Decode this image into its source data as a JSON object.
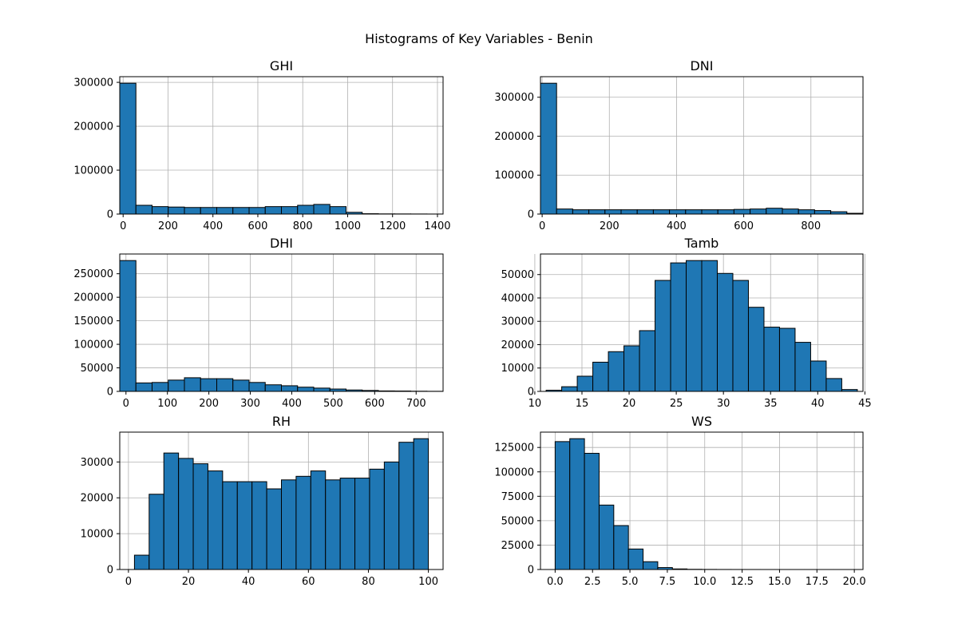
{
  "figure": {
    "suptitle": "Histograms of Key Variables - Benin"
  },
  "colors": {
    "bar_fill": "#1f77b4",
    "bar_edge": "#000000",
    "grid": "#b0b0b0"
  },
  "chart_data": [
    {
      "type": "bar",
      "title": "GHI",
      "xlabel": "",
      "ylabel": "",
      "grid": true,
      "bin_edges": [
        -15,
        57,
        129,
        201,
        273,
        345,
        417,
        489,
        561,
        633,
        705,
        777,
        849,
        921,
        993,
        1065,
        1137,
        1209,
        1281,
        1353,
        1425
      ],
      "values": [
        298000,
        20000,
        17000,
        16000,
        15000,
        15000,
        15000,
        15000,
        15000,
        17000,
        17000,
        20000,
        22000,
        17000,
        4000,
        800,
        400,
        300,
        200,
        100
      ],
      "xlim": [
        -15,
        1425
      ],
      "ylim": [
        0,
        312900
      ],
      "xticks": [
        0,
        200,
        400,
        600,
        800,
        1000,
        1200,
        1400
      ],
      "yticks": [
        0,
        100000,
        200000,
        300000
      ]
    },
    {
      "type": "bar",
      "title": "DNI",
      "xlabel": "",
      "ylabel": "",
      "grid": true,
      "bin_edges": [
        -5,
        43,
        91,
        139,
        187,
        235,
        283,
        331,
        379,
        427,
        475,
        523,
        571,
        619,
        667,
        715,
        763,
        811,
        859,
        907,
        955
      ],
      "values": [
        336000,
        13000,
        11000,
        11000,
        11000,
        11000,
        11000,
        11000,
        11000,
        11000,
        11000,
        11000,
        12000,
        13000,
        15000,
        13000,
        11000,
        9000,
        6000,
        2000
      ],
      "xlim": [
        -5,
        955
      ],
      "ylim": [
        0,
        352800
      ],
      "xticks": [
        0,
        200,
        400,
        600,
        800
      ],
      "yticks": [
        0,
        100000,
        200000,
        300000
      ]
    },
    {
      "type": "bar",
      "title": "DHI",
      "xlabel": "",
      "ylabel": "",
      "grid": true,
      "bin_edges": [
        -15,
        24,
        63,
        102,
        141,
        180,
        219,
        258,
        297,
        336,
        375,
        414,
        453,
        492,
        531,
        570,
        609,
        648,
        687,
        726,
        765
      ],
      "values": [
        278000,
        18000,
        19000,
        24000,
        29000,
        27000,
        27000,
        24000,
        19000,
        14000,
        12000,
        9000,
        7000,
        5000,
        3000,
        2000,
        1000,
        800,
        400,
        200
      ],
      "xlim": [
        -15,
        765
      ],
      "ylim": [
        0,
        291900
      ],
      "xticks": [
        0,
        100,
        200,
        300,
        400,
        500,
        600,
        700
      ],
      "yticks": [
        0,
        50000,
        100000,
        150000,
        200000,
        250000
      ]
    },
    {
      "type": "bar",
      "title": "Tamb",
      "xlabel": "",
      "ylabel": "",
      "grid": true,
      "bin_edges": [
        11.2,
        12.85,
        14.5,
        16.15,
        17.8,
        19.45,
        21.1,
        22.75,
        24.4,
        26.05,
        27.7,
        29.35,
        31.0,
        32.65,
        34.3,
        35.95,
        37.6,
        39.25,
        40.9,
        42.55,
        44.2
      ],
      "values": [
        500,
        2000,
        6500,
        12500,
        17000,
        19500,
        26000,
        47500,
        55000,
        56000,
        56000,
        50500,
        47500,
        36000,
        27500,
        27000,
        21000,
        13000,
        5500,
        800
      ],
      "xlim": [
        10.6,
        44.8
      ],
      "ylim": [
        0,
        58800
      ],
      "xticks": [
        10,
        15,
        20,
        25,
        30,
        35,
        40,
        45
      ],
      "yticks": [
        0,
        10000,
        20000,
        30000,
        40000,
        50000
      ]
    },
    {
      "type": "bar",
      "title": "RH",
      "xlabel": "",
      "ylabel": "",
      "grid": true,
      "bin_edges": [
        2.0,
        6.9,
        11.8,
        16.7,
        21.6,
        26.5,
        31.4,
        36.3,
        41.2,
        46.1,
        51.0,
        55.9,
        60.8,
        65.7,
        70.6,
        75.5,
        80.4,
        85.3,
        90.2,
        95.1,
        100.0
      ],
      "values": [
        4000,
        21000,
        32500,
        31000,
        29500,
        27500,
        24500,
        24500,
        24500,
        22500,
        25000,
        26000,
        27500,
        25000,
        25500,
        25500,
        28000,
        30000,
        35500,
        36500
      ],
      "xlim": [
        -2.9,
        104.9
      ],
      "ylim": [
        0,
        38325
      ],
      "xticks": [
        0,
        20,
        40,
        60,
        80,
        100
      ],
      "yticks": [
        0,
        10000,
        20000,
        30000
      ]
    },
    {
      "type": "bar",
      "title": "WS",
      "xlabel": "",
      "ylabel": "",
      "grid": true,
      "bin_edges": [
        0.0,
        0.98,
        1.96,
        2.94,
        3.92,
        4.9,
        5.88,
        6.86,
        7.84,
        8.82,
        9.8,
        10.78,
        11.76,
        12.74,
        13.72,
        14.7,
        15.68,
        16.66,
        17.64,
        18.62,
        19.6
      ],
      "values": [
        131000,
        134000,
        119000,
        66000,
        45000,
        21000,
        8000,
        2000,
        600,
        200,
        100,
        50,
        30,
        20,
        10,
        10,
        5,
        5,
        5,
        5
      ],
      "xlim": [
        -0.98,
        20.58
      ],
      "ylim": [
        0,
        140700
      ],
      "xticks": [
        0.0,
        2.5,
        5.0,
        7.5,
        10.0,
        12.5,
        15.0,
        17.5,
        20.0
      ],
      "yticks": [
        0,
        25000,
        50000,
        75000,
        100000,
        125000
      ]
    }
  ]
}
